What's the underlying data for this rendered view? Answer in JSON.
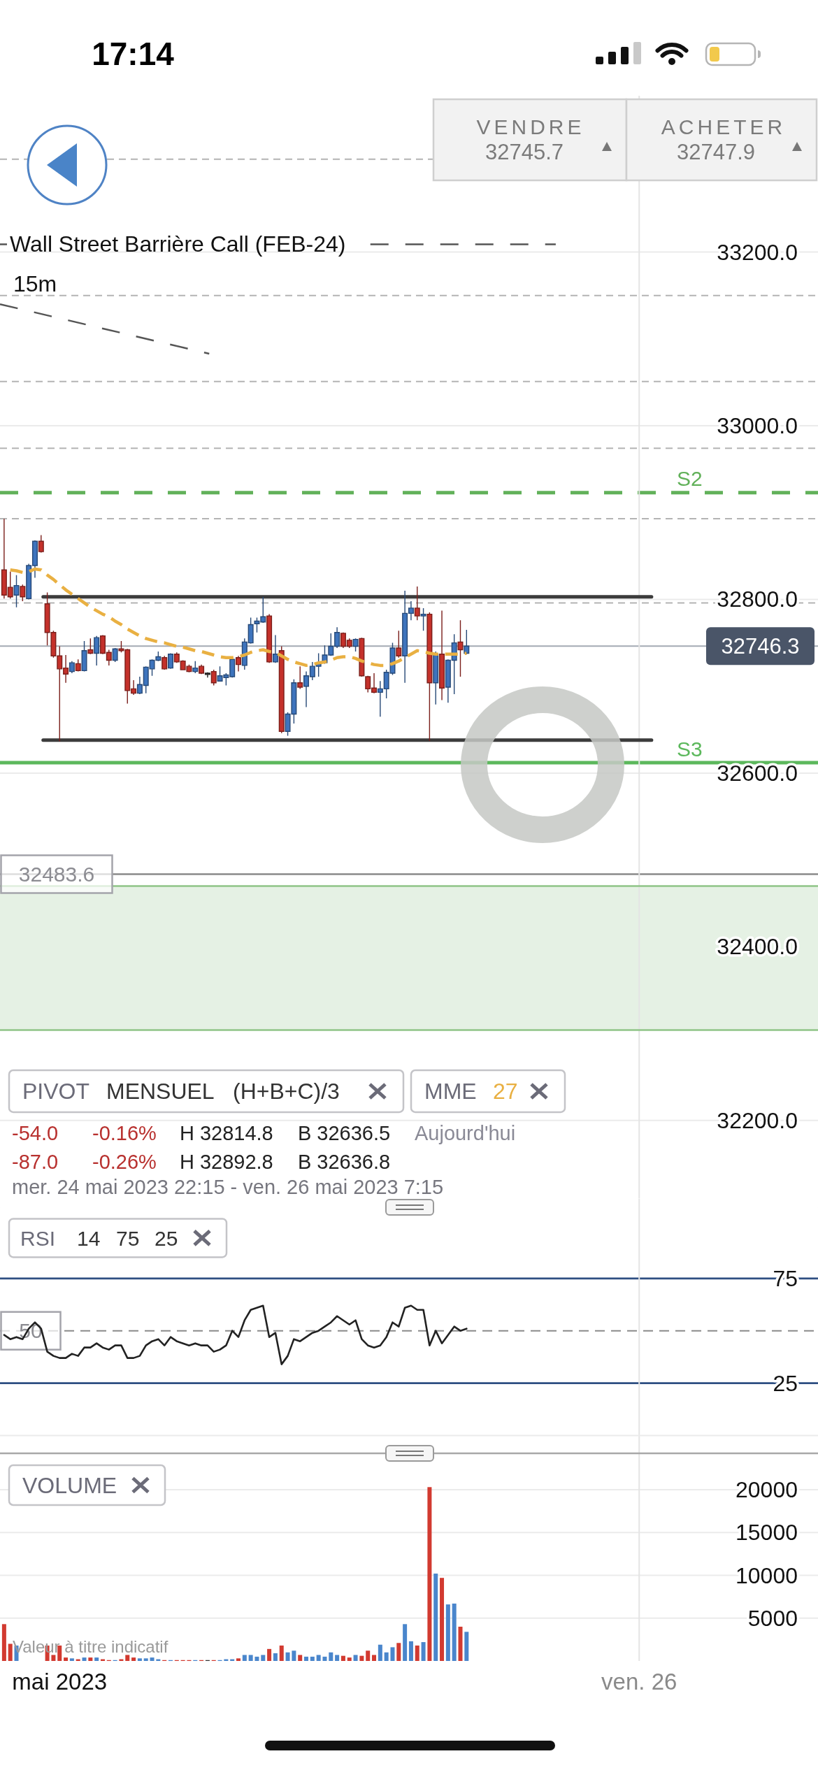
{
  "chart_data": [
    {
      "type": "candlestick",
      "title": "Wall Street Barrière Call (FEB-24)",
      "subtitle": "15m",
      "x": [
        "2023-05-24T22:15",
        "2023-05-24T22:30",
        "2023-05-24T22:45",
        "2023-05-24T23:00",
        "2023-05-24T23:15",
        "2023-05-24T23:30",
        "2023-05-24T23:45",
        "2023-05-25T00:00",
        "2023-05-25T00:15",
        "2023-05-25T00:30",
        "2023-05-25T00:45",
        "2023-05-25T01:00",
        "2023-05-25T01:15",
        "2023-05-25T01:30",
        "2023-05-25T01:45",
        "2023-05-25T02:00",
        "2023-05-25T02:15",
        "2023-05-25T02:30",
        "2023-05-25T02:45",
        "2023-05-25T03:00",
        "2023-05-25T03:15",
        "2023-05-25T03:30",
        "2023-05-25T03:45",
        "2023-05-25T04:00",
        "2023-05-25T04:15",
        "2023-05-25T04:30",
        "2023-05-25T04:45",
        "2023-05-25T05:00",
        "2023-05-25T05:15",
        "2023-05-25T05:30",
        "2023-05-25T05:45",
        "2023-05-25T06:00",
        "2023-05-25T06:15",
        "2023-05-25T06:30",
        "2023-05-25T06:45",
        "2023-05-25T07:00",
        "2023-05-25T07:15",
        "2023-05-25T07:30",
        "2023-05-25T07:45",
        "2023-05-25T08:00",
        "2023-05-25T08:15",
        "2023-05-25T08:30",
        "2023-05-25T08:45",
        "2023-05-25T09:00",
        "2023-05-25T09:15",
        "2023-05-25T09:30",
        "2023-05-25T09:45",
        "2023-05-25T10:00",
        "2023-05-25T10:15",
        "2023-05-25T10:30",
        "2023-05-25T10:45",
        "2023-05-25T11:00",
        "2023-05-25T11:15",
        "2023-05-25T11:30",
        "2023-05-25T11:45",
        "2023-05-25T12:00",
        "2023-05-25T12:15",
        "2023-05-25T12:30",
        "2023-05-25T12:45",
        "2023-05-25T13:00",
        "2023-05-25T13:15",
        "2023-05-25T13:30",
        "2023-05-25T13:45",
        "2023-05-25T14:00",
        "2023-05-25T14:15",
        "2023-05-25T14:30",
        "2023-05-25T14:45",
        "2023-05-25T15:00",
        "2023-05-25T15:15",
        "2023-05-25T15:30",
        "2023-05-25T15:45",
        "2023-05-25T16:00",
        "2023-05-25T16:15",
        "2023-05-25T16:30",
        "2023-05-25T16:45",
        "2023-05-25T17:00"
      ],
      "ohlc": [
        [
          32834,
          32892.8,
          32801,
          32805
        ],
        [
          32814,
          32832,
          32801,
          32803
        ],
        [
          32805,
          32828,
          32791,
          32816
        ],
        [
          32815,
          32817,
          32798,
          32803
        ],
        [
          32801,
          32841,
          32800,
          32839
        ],
        [
          32839,
          32868,
          32825,
          32867
        ],
        [
          32867,
          32874,
          32854,
          32855
        ],
        [
          32795,
          32808,
          32747,
          32762
        ],
        [
          32762,
          32764,
          32733,
          32735
        ],
        [
          32735,
          32746,
          32636.5,
          32720
        ],
        [
          32721,
          32736,
          32704,
          32714
        ],
        [
          32717,
          32729,
          32715,
          32727
        ],
        [
          32726,
          32731,
          32717,
          32718
        ],
        [
          32718,
          32752,
          32717,
          32741
        ],
        [
          32742,
          32755,
          32737,
          32738
        ],
        [
          32738,
          32758,
          32724,
          32756
        ],
        [
          32758,
          32759,
          32737,
          32738
        ],
        [
          32739,
          32742,
          32724,
          32730
        ],
        [
          32730,
          32744,
          32728,
          32743
        ],
        [
          32743,
          32752,
          32739,
          32741
        ],
        [
          32742,
          32743,
          32680,
          32695
        ],
        [
          32697,
          32707,
          32690,
          32692
        ],
        [
          32692,
          32711,
          32691,
          32702
        ],
        [
          32701,
          32723,
          32692,
          32722
        ],
        [
          32720,
          32731,
          32712,
          32730
        ],
        [
          32730,
          32740,
          32729,
          32734
        ],
        [
          32733,
          32735,
          32719,
          32720
        ],
        [
          32721,
          32738,
          32720,
          32737
        ],
        [
          32737,
          32739,
          32727,
          32728
        ],
        [
          32729,
          32730,
          32719,
          32719
        ],
        [
          32723,
          32725,
          32716,
          32717
        ],
        [
          32717,
          32729,
          32715,
          32721
        ],
        [
          32723,
          32725,
          32714,
          32715
        ],
        [
          32715,
          32716,
          32710,
          32715
        ],
        [
          32717,
          32719,
          32701,
          32704
        ],
        [
          32706,
          32723,
          32706,
          32712
        ],
        [
          32710,
          32715,
          32701,
          32713
        ],
        [
          32711,
          32733,
          32710,
          32731
        ],
        [
          32733,
          32735,
          32717,
          32725
        ],
        [
          32724,
          32755,
          32719,
          32751
        ],
        [
          32750,
          32779,
          32749,
          32771
        ],
        [
          32772,
          32779,
          32762,
          32775
        ],
        [
          32774,
          32803,
          32773,
          32780
        ],
        [
          32781,
          32783,
          32727,
          32728
        ],
        [
          32728,
          32759,
          32727,
          32737
        ],
        [
          32741,
          32746,
          32646,
          32648
        ],
        [
          32648,
          32670,
          32643,
          32668
        ],
        [
          32668,
          32708,
          32657,
          32704
        ],
        [
          32704,
          32723,
          32697,
          32699
        ],
        [
          32700,
          32717,
          32676,
          32712
        ],
        [
          32711,
          32728,
          32707,
          32723
        ],
        [
          32723,
          32738,
          32711,
          32727
        ],
        [
          32727,
          32747,
          32726,
          32736
        ],
        [
          32736,
          32761,
          32735,
          32746
        ],
        [
          32746,
          32768,
          32744,
          32762
        ],
        [
          32761,
          32762,
          32744,
          32746
        ],
        [
          32753,
          32755,
          32744,
          32746
        ],
        [
          32746,
          32755,
          32740,
          32754
        ],
        [
          32755,
          32756,
          32711,
          32712
        ],
        [
          32711,
          32712,
          32693,
          32697
        ],
        [
          32698,
          32715,
          32692,
          32693
        ],
        [
          32693,
          32706,
          32665,
          32697
        ],
        [
          32697,
          32719,
          32686,
          32716
        ],
        [
          32715,
          32750,
          32713,
          32744
        ],
        [
          32744,
          32764,
          32733,
          32735
        ],
        [
          32735,
          32810,
          32704,
          32784
        ],
        [
          32784,
          32798,
          32776,
          32790
        ],
        [
          32790,
          32814.8,
          32776,
          32781
        ],
        [
          32781,
          32790,
          32764,
          32783
        ],
        [
          32783,
          32785,
          32637,
          32704
        ],
        [
          32704,
          32740,
          32679,
          32737
        ],
        [
          32737,
          32787,
          32684,
          32698
        ],
        [
          32699,
          32731,
          32681,
          32730
        ],
        [
          32730,
          32760,
          32691,
          32750
        ],
        [
          32751,
          32776,
          32711,
          32742
        ],
        [
          32738,
          32765,
          32737,
          32746.3
        ]
      ],
      "colors": [
        "#c4312b",
        "#c4312b",
        "#3e74bd",
        "#c4312b",
        "#3e74bd",
        "#3e74bd",
        "#c4312b",
        "#c4312b",
        "#c4312b",
        "#c4312b",
        "#c4312b",
        "#3e74bd",
        "#c4312b",
        "#3e74bd",
        "#c4312b",
        "#3e74bd",
        "#c4312b",
        "#c4312b",
        "#3e74bd",
        "#c4312b",
        "#c4312b",
        "#c4312b",
        "#3e74bd",
        "#3e74bd",
        "#3e74bd",
        "#3e74bd",
        "#c4312b",
        "#3e74bd",
        "#c4312b",
        "#c4312b",
        "#c4312b",
        "#3e74bd",
        "#c4312b",
        "#333333",
        "#c4312b",
        "#3e74bd",
        "#3e74bd",
        "#3e74bd",
        "#c4312b",
        "#3e74bd",
        "#3e74bd",
        "#3e74bd",
        "#3e74bd",
        "#c4312b",
        "#3e74bd",
        "#c4312b",
        "#3e74bd",
        "#3e74bd",
        "#c4312b",
        "#3e74bd",
        "#3e74bd",
        "#3e74bd",
        "#3e74bd",
        "#3e74bd",
        "#3e74bd",
        "#c4312b",
        "#c4312b",
        "#3e74bd",
        "#c4312b",
        "#c4312b",
        "#c4312b",
        "#3e74bd",
        "#3e74bd",
        "#3e74bd",
        "#c4312b",
        "#3e74bd",
        "#3e74bd",
        "#c4312b",
        "#3e74bd",
        "#c4312b",
        "#3e74bd",
        "#c4312b",
        "#3e74bd",
        "#3e74bd",
        "#c4312b",
        "#3e74bd"
      ],
      "series": [
        {
          "name": "27",
          "type": "line",
          "color": "#e9b042",
          "line_style": "dashed",
          "values": [
            null,
            32834,
            32833,
            32831,
            32832,
            32835,
            32834,
            32828,
            32823,
            32817,
            32811,
            32806,
            32801,
            32796,
            32791,
            32787,
            32783,
            32780,
            32775,
            32771,
            32766,
            32762,
            32758,
            32755,
            32753,
            32751,
            32750,
            32748,
            32746,
            32745,
            32743,
            32741,
            32740,
            32738,
            32736,
            32734,
            32733,
            32733,
            32734,
            32736,
            32739,
            32741,
            32742,
            32740,
            32739,
            32735,
            32731,
            32728,
            32726,
            32724,
            32725,
            32727,
            32728,
            32730,
            32733,
            32734,
            32734,
            32732,
            32729,
            32727,
            32725,
            32724,
            32724,
            32726,
            32729,
            32733,
            32737,
            32741,
            32740,
            32738,
            32737,
            32737,
            32737,
            32737,
            32737,
            32738
          ]
        },
        {
          "type": "line",
          "color": "#3c3c3c",
          "x": [
            "2023-05-24T23:50",
            "2023-05-26T00:30"
          ],
          "values": [
            32803,
            32803
          ]
        },
        {
          "type": "line",
          "color": "#3c3c3c",
          "x": [
            "2023-05-24T23:50",
            "2023-05-26T00:30"
          ],
          "values": [
            32638,
            32638
          ]
        },
        {
          "type": "line",
          "color": "#555555",
          "line_style": "dashed",
          "x": [
            "2023-05-24T22:05",
            "2023-05-24T22:22",
            "2023-05-25T06:00",
            "2023-05-25T13:06",
            "2023-05-25T20:37"
          ],
          "values": [
            33209,
            33209,
            null,
            33209,
            33209
          ]
        },
        {
          "type": "line",
          "color": "#555555",
          "line_style": "dashed",
          "x": [
            "2023-05-24T22:05",
            "2023-05-25T06:34"
          ],
          "values": [
            33140,
            33083
          ]
        }
      ],
      "xlim": [
        "2023-05-24T22:05",
        "2023-05-26T07:15"
      ],
      "ylim": [
        32110,
        33380
      ],
      "yticks": [
        {
          "value": 32200,
          "label": "32200.0"
        },
        {
          "value": 32400,
          "label": "32400.0"
        },
        {
          "value": 32600,
          "label": "32600.0"
        },
        {
          "value": 32800,
          "label": "32800.0"
        },
        {
          "value": 33000,
          "label": "33000.0"
        },
        {
          "value": 33200,
          "label": "33200.0"
        }
      ],
      "grid": "y",
      "legend": "bottom left",
      "legend_title": "MME",
      "tick_labels": "y",
      "ref_lines": [
        {
          "axis": "y",
          "value": 33307,
          "color": "#b4b4b4",
          "line_style": "dashed"
        },
        {
          "axis": "y",
          "value": 33150,
          "color": "#b4b4b4",
          "line_style": "dashed"
        },
        {
          "axis": "y",
          "value": 33051,
          "color": "#b4b4b4",
          "line_style": "dashed"
        },
        {
          "axis": "y",
          "value": 32974,
          "color": "#b4b4b4",
          "line_style": "dashed"
        },
        {
          "axis": "y",
          "value": 32923,
          "label": "S2",
          "color": "#62b15a",
          "line_style": "dashed"
        },
        {
          "axis": "y",
          "value": 32893,
          "color": "#b4b4b4",
          "line_style": "dashed"
        },
        {
          "axis": "y",
          "value": 32796,
          "color": "#b4b4b4",
          "line_style": "dashed"
        },
        {
          "axis": "y",
          "value": 32746.3,
          "label": "32746.3",
          "color": "#4a5568"
        },
        {
          "axis": "y",
          "value": 32612,
          "label": "S3",
          "color": "#5cb85c"
        },
        {
          "axis": "y",
          "value": 32483.6,
          "label": "32483.6",
          "color": "#8a8a8a"
        },
        {
          "axis": "x",
          "value": "2023-05-26T00:00",
          "color": "#e4e4e4"
        },
        {
          "axis": "y",
          "value": 32470,
          "color": "#8fc487"
        },
        {
          "axis": "y",
          "value": 32304,
          "color": "#8fc487"
        }
      ],
      "bands": [
        {
          "axis": "y",
          "from": 32304,
          "to": 32470,
          "color": "#e5f1e4"
        }
      ],
      "annotations": [
        "17:14",
        "VENDRE",
        "32745.7",
        "ACHETER",
        "32747.9",
        "PIVOT",
        "MENSUEL",
        "(H+B+C)/3",
        "-54.0",
        "-0.16%",
        "H 32814.8",
        "B 32636.5",
        "Aujourd'hui",
        "-87.0",
        "-0.26%",
        "H 32892.8",
        "B 32636.8",
        "mer. 24 mai 2023 22:15 - ven. 26 mai 2023 7:15"
      ]
    },
    {
      "type": "line",
      "title": "RSI",
      "x": [
        "2023-05-24T22:15",
        "2023-05-24T22:30",
        "2023-05-24T22:45",
        "2023-05-24T23:00",
        "2023-05-24T23:15",
        "2023-05-24T23:30",
        "2023-05-24T23:45",
        "2023-05-25T00:00",
        "2023-05-25T00:15",
        "2023-05-25T00:30",
        "2023-05-25T00:45",
        "2023-05-25T01:00",
        "2023-05-25T01:15",
        "2023-05-25T01:30",
        "2023-05-25T01:45",
        "2023-05-25T02:00",
        "2023-05-25T02:15",
        "2023-05-25T02:30",
        "2023-05-25T02:45",
        "2023-05-25T03:00",
        "2023-05-25T03:15",
        "2023-05-25T03:30",
        "2023-05-25T03:45",
        "2023-05-25T04:00",
        "2023-05-25T04:15",
        "2023-05-25T04:30",
        "2023-05-25T04:45",
        "2023-05-25T05:00",
        "2023-05-25T05:15",
        "2023-05-25T05:30",
        "2023-05-25T05:45",
        "2023-05-25T06:00",
        "2023-05-25T06:15",
        "2023-05-25T06:30",
        "2023-05-25T06:45",
        "2023-05-25T07:00",
        "2023-05-25T07:15",
        "2023-05-25T07:30",
        "2023-05-25T07:45",
        "2023-05-25T08:00",
        "2023-05-25T08:15",
        "2023-05-25T08:30",
        "2023-05-25T08:45",
        "2023-05-25T09:00",
        "2023-05-25T09:15",
        "2023-05-25T09:30",
        "2023-05-25T09:45",
        "2023-05-25T10:00",
        "2023-05-25T10:15",
        "2023-05-25T10:30",
        "2023-05-25T10:45",
        "2023-05-25T11:00",
        "2023-05-25T11:15",
        "2023-05-25T11:30",
        "2023-05-25T11:45",
        "2023-05-25T12:00",
        "2023-05-25T12:15",
        "2023-05-25T12:30",
        "2023-05-25T12:45",
        "2023-05-25T13:00",
        "2023-05-25T13:15",
        "2023-05-25T13:30",
        "2023-05-25T13:45",
        "2023-05-25T14:00",
        "2023-05-25T14:15",
        "2023-05-25T14:30",
        "2023-05-25T14:45",
        "2023-05-25T15:00",
        "2023-05-25T15:15",
        "2023-05-25T15:30",
        "2023-05-25T15:45",
        "2023-05-25T16:00",
        "2023-05-25T16:15",
        "2023-05-25T16:30",
        "2023-05-25T16:45",
        "2023-05-25T17:00"
      ],
      "series": [
        {
          "color": "#222222",
          "values": [
            48,
            46,
            47,
            46,
            51,
            54,
            51,
            40,
            38,
            37,
            37,
            39,
            38,
            42,
            42,
            44,
            42,
            41,
            43,
            43,
            37,
            37,
            38,
            43,
            45,
            46,
            43,
            47,
            45,
            44,
            43,
            44,
            43,
            43,
            40,
            41,
            43,
            50,
            47,
            55,
            60,
            61,
            62,
            47,
            49,
            34,
            38,
            46,
            45,
            47,
            49,
            50,
            52,
            54,
            57,
            55,
            53,
            55,
            46,
            43,
            42,
            43,
            47,
            54,
            52,
            61,
            62,
            60,
            60,
            43,
            50,
            44,
            48,
            52,
            50,
            51
          ]
        }
      ],
      "xlim": [
        "2023-05-24T22:05",
        "2023-05-26T07:15"
      ],
      "ylim": [
        -10,
        113
      ],
      "yticks": [
        25,
        75
      ],
      "tick_labels": "y",
      "ref_lines": [
        {
          "axis": "y",
          "value": 75,
          "color": "#2e4f82"
        },
        {
          "axis": "y",
          "value": 25,
          "color": "#2e4f82"
        },
        {
          "axis": "y",
          "value": 50,
          "label": "50",
          "color": "#8a8a8a",
          "line_style": "dashed"
        },
        {
          "axis": "x",
          "value": "2023-05-26T00:00",
          "color": "#e4e4e4"
        },
        {
          "axis": "y",
          "value": 0,
          "color": "#ebebeb"
        }
      ],
      "annotations": [
        "14",
        "75",
        "25"
      ]
    },
    {
      "type": "bar",
      "title": "VOLUME",
      "x": [
        "2023-05-24T22:15",
        "2023-05-24T22:30",
        "2023-05-24T22:45",
        "2023-05-24T23:00",
        "2023-05-24T23:15",
        "2023-05-24T23:30",
        "2023-05-24T23:45",
        "2023-05-25T00:00",
        "2023-05-25T00:15",
        "2023-05-25T00:30",
        "2023-05-25T00:45",
        "2023-05-25T01:00",
        "2023-05-25T01:15",
        "2023-05-25T01:30",
        "2023-05-25T01:45",
        "2023-05-25T02:00",
        "2023-05-25T02:15",
        "2023-05-25T02:30",
        "2023-05-25T02:45",
        "2023-05-25T03:00",
        "2023-05-25T03:15",
        "2023-05-25T03:30",
        "2023-05-25T03:45",
        "2023-05-25T04:00",
        "2023-05-25T04:15",
        "2023-05-25T04:30",
        "2023-05-25T04:45",
        "2023-05-25T05:00",
        "2023-05-25T05:15",
        "2023-05-25T05:30",
        "2023-05-25T05:45",
        "2023-05-25T06:00",
        "2023-05-25T06:15",
        "2023-05-25T06:30",
        "2023-05-25T06:45",
        "2023-05-25T07:00",
        "2023-05-25T07:15",
        "2023-05-25T07:30",
        "2023-05-25T07:45",
        "2023-05-25T08:00",
        "2023-05-25T08:15",
        "2023-05-25T08:30",
        "2023-05-25T08:45",
        "2023-05-25T09:00",
        "2023-05-25T09:15",
        "2023-05-25T09:30",
        "2023-05-25T09:45",
        "2023-05-25T10:00",
        "2023-05-25T10:15",
        "2023-05-25T10:30",
        "2023-05-25T10:45",
        "2023-05-25T11:00",
        "2023-05-25T11:15",
        "2023-05-25T11:30",
        "2023-05-25T11:45",
        "2023-05-25T12:00",
        "2023-05-25T12:15",
        "2023-05-25T12:30",
        "2023-05-25T12:45",
        "2023-05-25T13:00",
        "2023-05-25T13:15",
        "2023-05-25T13:30",
        "2023-05-25T13:45",
        "2023-05-25T14:00",
        "2023-05-25T14:15",
        "2023-05-25T14:30",
        "2023-05-25T14:45",
        "2023-05-25T15:00",
        "2023-05-25T15:15",
        "2023-05-25T15:30",
        "2023-05-25T15:45",
        "2023-05-25T16:00",
        "2023-05-25T16:15",
        "2023-05-25T16:30",
        "2023-05-25T16:45",
        "2023-05-25T17:00"
      ],
      "values": [
        4300,
        2000,
        1800,
        null,
        null,
        null,
        null,
        1800,
        700,
        1800,
        400,
        300,
        200,
        400,
        400,
        400,
        200,
        100,
        100,
        200,
        700,
        400,
        300,
        300,
        400,
        200,
        100,
        100,
        100,
        100,
        100,
        100,
        100,
        100,
        100,
        100,
        200,
        200,
        300,
        700,
        700,
        500,
        700,
        1400,
        900,
        1800,
        1000,
        1200,
        700,
        500,
        500,
        700,
        500,
        1000,
        700,
        600,
        400,
        700,
        600,
        1200,
        700,
        1900,
        1000,
        1600,
        2100,
        4300,
        2300,
        1800,
        2200,
        20300,
        10200,
        9700,
        6600,
        6700,
        4000,
        3400
      ],
      "colors": [
        "#d23a30",
        "#d23a30",
        "#4a86cc",
        null,
        null,
        null,
        null,
        "#d23a30",
        "#d23a30",
        "#d23a30",
        "#d23a30",
        "#4a86cc",
        "#d23a30",
        "#4a86cc",
        "#d23a30",
        "#4a86cc",
        "#d23a30",
        "#d23a30",
        "#4a86cc",
        "#d23a30",
        "#d23a30",
        "#d23a30",
        "#4a86cc",
        "#4a86cc",
        "#4a86cc",
        "#4a86cc",
        "#d23a30",
        "#4a86cc",
        "#d23a30",
        "#d23a30",
        "#d23a30",
        "#4a86cc",
        "#d23a30",
        "#333333",
        "#d23a30",
        "#4a86cc",
        "#4a86cc",
        "#4a86cc",
        "#d23a30",
        "#4a86cc",
        "#4a86cc",
        "#4a86cc",
        "#4a86cc",
        "#d23a30",
        "#4a86cc",
        "#d23a30",
        "#4a86cc",
        "#4a86cc",
        "#d23a30",
        "#4a86cc",
        "#4a86cc",
        "#4a86cc",
        "#4a86cc",
        "#4a86cc",
        "#4a86cc",
        "#d23a30",
        "#d23a30",
        "#4a86cc",
        "#d23a30",
        "#d23a30",
        "#d23a30",
        "#4a86cc",
        "#4a86cc",
        "#4a86cc",
        "#d23a30",
        "#4a86cc",
        "#4a86cc",
        "#d23a30",
        "#4a86cc",
        "#d23a30",
        "#4a86cc",
        "#d23a30",
        "#4a86cc",
        "#4a86cc",
        "#d23a30",
        "#4a86cc"
      ],
      "xlim": [
        "2023-05-24T22:05",
        "2023-05-26T07:15"
      ],
      "ylim": [
        0,
        24000
      ],
      "yticks": [
        5000,
        10000,
        15000,
        20000
      ],
      "xticks": [
        {
          "value": "2023-05-25T00:30",
          "label": "mai 2023"
        },
        {
          "value": "2023-05-26T00:00",
          "label": "ven. 26"
        }
      ],
      "grid": "y",
      "ref_lines": [
        {
          "axis": "x",
          "value": "2023-05-26T00:00",
          "color": "#e4e4e4"
        }
      ],
      "annotations": [
        "Valeur à titre indicatif"
      ]
    }
  ]
}
